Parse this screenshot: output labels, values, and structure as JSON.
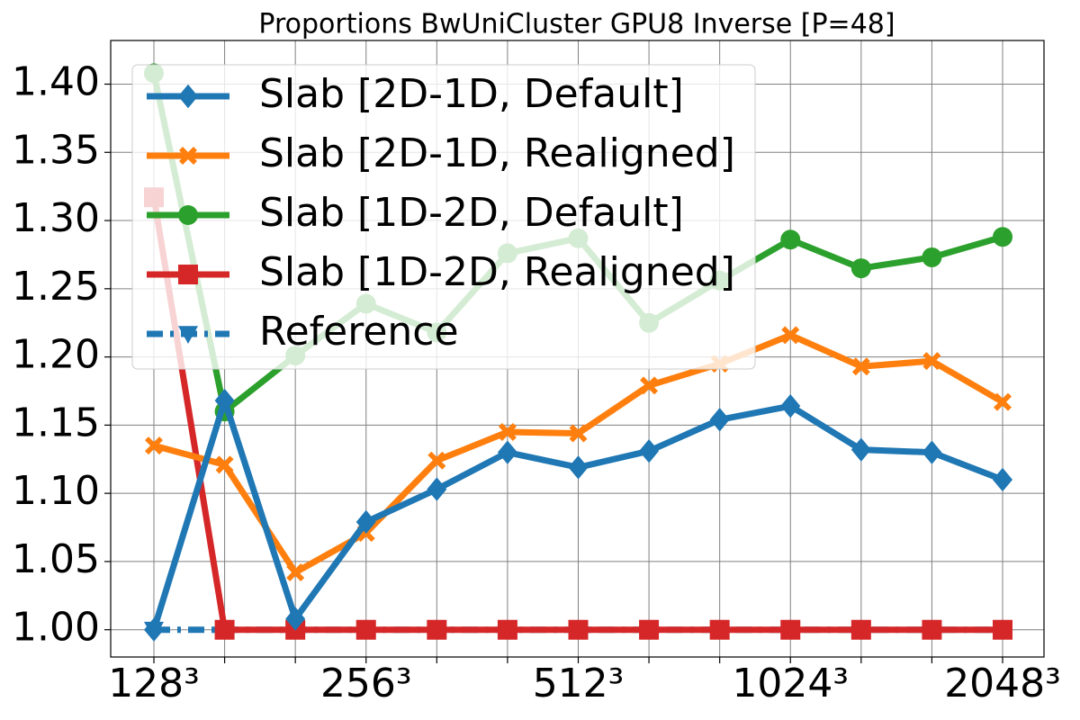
{
  "chart_data": {
    "type": "line",
    "title": "Proportions BwUniCluster GPU8 Inverse [P=48]",
    "categories": [
      "128³",
      null,
      null,
      "256³",
      null,
      null,
      "512³",
      null,
      null,
      "1024³",
      null,
      null,
      "2048³"
    ],
    "series": [
      {
        "name": "Slab [2D-1D, Default]",
        "color": "#1f77b4",
        "marker": "diamond",
        "values": [
          1.0,
          1.168,
          1.008,
          1.079,
          1.103,
          1.13,
          1.119,
          1.131,
          1.154,
          1.164,
          1.132,
          1.13,
          1.11
        ]
      },
      {
        "name": "Slab [2D-1D, Realigned]",
        "color": "#ff7f0e",
        "marker": "x",
        "values": [
          1.135,
          1.121,
          1.042,
          1.071,
          1.124,
          1.145,
          1.144,
          1.179,
          1.195,
          1.216,
          1.193,
          1.197,
          1.167
        ]
      },
      {
        "name": "Slab [1D-2D, Default]",
        "color": "#2ca02c",
        "marker": "circle",
        "values": [
          1.408,
          1.16,
          1.201,
          1.239,
          1.218,
          1.276,
          1.287,
          1.225,
          1.256,
          1.286,
          1.265,
          1.273,
          1.288
        ]
      },
      {
        "name": "Slab [1D-2D, Realigned]",
        "color": "#d62728",
        "marker": "square",
        "values": [
          1.317,
          1.0,
          1.0,
          1.0,
          1.0,
          1.0,
          1.0,
          1.0,
          1.0,
          1.0,
          1.0,
          1.0,
          1.0
        ]
      },
      {
        "name": "Reference",
        "color": "#1f77b4",
        "marker": "triangle-down",
        "dash": true,
        "values": [
          1.0,
          1.0,
          1.0,
          1.0,
          1.0,
          1.0,
          1.0,
          1.0,
          1.0,
          1.0,
          1.0,
          1.0,
          1.0
        ]
      }
    ],
    "ylim": [
      0.98,
      1.432
    ],
    "yticks": [
      {
        "value": 1.0,
        "label": "1.00"
      },
      {
        "value": 1.05,
        "label": "1.05"
      },
      {
        "value": 1.1,
        "label": "1.10"
      },
      {
        "value": 1.15,
        "label": "1.15"
      },
      {
        "value": 1.2,
        "label": "1.20"
      },
      {
        "value": 1.25,
        "label": "1.25"
      },
      {
        "value": 1.3,
        "label": "1.30"
      },
      {
        "value": 1.35,
        "label": "1.35"
      },
      {
        "value": 1.4,
        "label": "1.40"
      }
    ],
    "grid": true,
    "legend": "upper left"
  }
}
